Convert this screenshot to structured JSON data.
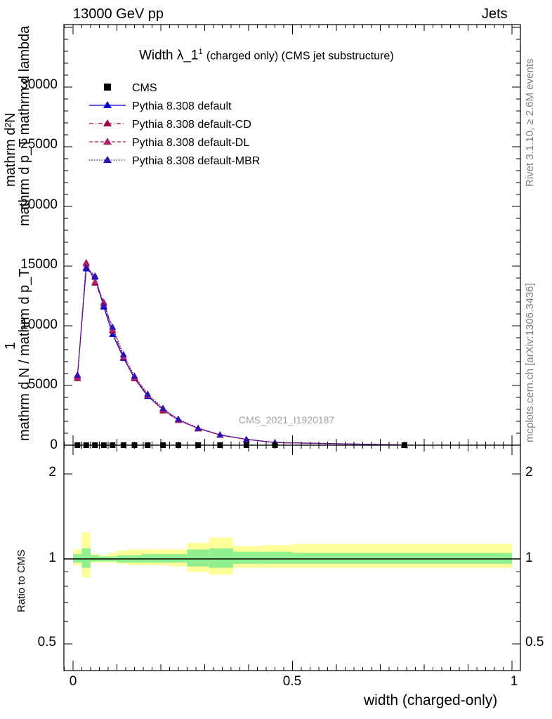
{
  "header": {
    "left": "13000 GeV pp",
    "right": "Jets"
  },
  "side": {
    "rivet": "Rivet 3.1.10, ≥ 2.6M events",
    "mcplots": "mcplots.cern.ch [arXiv:1306.3436]"
  },
  "main": {
    "title_prefix": "Width λ_1",
    "title_sup": "1",
    "title_suffix": "(charged only) (CMS jet substructure)",
    "ylabel_line1": "mathrm d²N",
    "ylabel_line2": "mathrm d p_T mathrm d lambda",
    "ylabel_one": "1",
    "ylabel_denom": "mathrm d N / mathrm d p_T",
    "watermark": "CMS_2021_I1920187",
    "yticks": [
      "0",
      "5000",
      "10000",
      "15000",
      "20000",
      "25000",
      "30000"
    ]
  },
  "ratio": {
    "ylabel": "Ratio to CMS",
    "yticks": [
      "0.5",
      "1",
      "2"
    ]
  },
  "xaxis": {
    "label": "width (charged-only)",
    "ticks": [
      "0",
      "0.5",
      "1"
    ]
  },
  "chart_data": {
    "type": "line",
    "xlabel": "width (charged-only)",
    "ylabel": "mathrm d N / mathrm d p_T · mathrm d²N / mathrm d p_T mathrm d lambda",
    "xlim": [
      -0.02,
      1.02
    ],
    "ylim": [
      0,
      35000
    ],
    "ratio_ylim": [
      0.4,
      2.3
    ],
    "x": [
      0.01,
      0.03,
      0.05,
      0.07,
      0.09,
      0.115,
      0.14,
      0.17,
      0.205,
      0.24,
      0.285,
      0.335,
      0.395,
      0.46,
      0.755
    ],
    "cms": [
      0,
      0,
      0,
      0,
      0,
      0,
      0,
      0,
      0,
      0,
      0,
      0,
      0,
      0,
      0
    ],
    "series": [
      {
        "name": "CMS",
        "color": "#000000",
        "values": [
          0,
          0,
          0,
          0,
          0,
          0,
          0,
          0,
          0,
          0,
          0,
          0,
          0,
          0,
          0
        ]
      },
      {
        "name": "Pythia 8.308 default",
        "color": "#0000cc",
        "style": "solid",
        "values": [
          5800,
          14800,
          14100,
          11600,
          9300,
          7300,
          5600,
          4100,
          3000,
          2100,
          1400,
          850,
          480,
          220,
          20
        ]
      },
      {
        "name": "Pythia 8.308 default-CD",
        "color": "#a00040",
        "style": "dashdot",
        "values": [
          5600,
          15300,
          13600,
          11900,
          9600,
          7400,
          5600,
          4200,
          2900,
          2100,
          1400,
          850,
          480,
          220,
          20
        ]
      },
      {
        "name": "Pythia 8.308 default-DL",
        "color": "#b0206a",
        "style": "dashed",
        "values": [
          5700,
          15200,
          13700,
          12000,
          9700,
          7400,
          5700,
          4200,
          3000,
          2100,
          1400,
          850,
          480,
          220,
          20
        ]
      },
      {
        "name": "Pythia 8.308 default-MBR",
        "color": "#3010b0",
        "style": "dotted",
        "values": [
          5900,
          14900,
          14200,
          11700,
          9900,
          7600,
          5800,
          4300,
          3100,
          2200,
          1450,
          880,
          500,
          230,
          20
        ]
      }
    ],
    "ratio_bands": {
      "edges": [
        0.0,
        0.02,
        0.04,
        0.06,
        0.08,
        0.1,
        0.125,
        0.155,
        0.19,
        0.22,
        0.26,
        0.31,
        0.365,
        0.43,
        0.5,
        1.0
      ],
      "stat_lo": [
        0.97,
        0.93,
        0.98,
        0.98,
        0.98,
        0.97,
        0.97,
        0.97,
        0.97,
        0.97,
        0.94,
        0.93,
        0.96,
        0.96,
        0.96
      ],
      "stat_hi": [
        1.04,
        1.09,
        1.03,
        1.02,
        1.02,
        1.03,
        1.03,
        1.04,
        1.04,
        1.04,
        1.08,
        1.09,
        1.06,
        1.06,
        1.05
      ],
      "syst_lo": [
        0.95,
        0.86,
        0.97,
        0.97,
        0.97,
        0.96,
        0.95,
        0.95,
        0.95,
        0.94,
        0.9,
        0.88,
        0.93,
        0.93,
        0.93
      ],
      "syst_hi": [
        1.08,
        1.24,
        1.04,
        1.03,
        1.05,
        1.07,
        1.08,
        1.08,
        1.08,
        1.08,
        1.14,
        1.19,
        1.11,
        1.12,
        1.13
      ],
      "stat_color": "#90f090",
      "syst_color": "#ffff99"
    },
    "legend_position": "top-left"
  }
}
